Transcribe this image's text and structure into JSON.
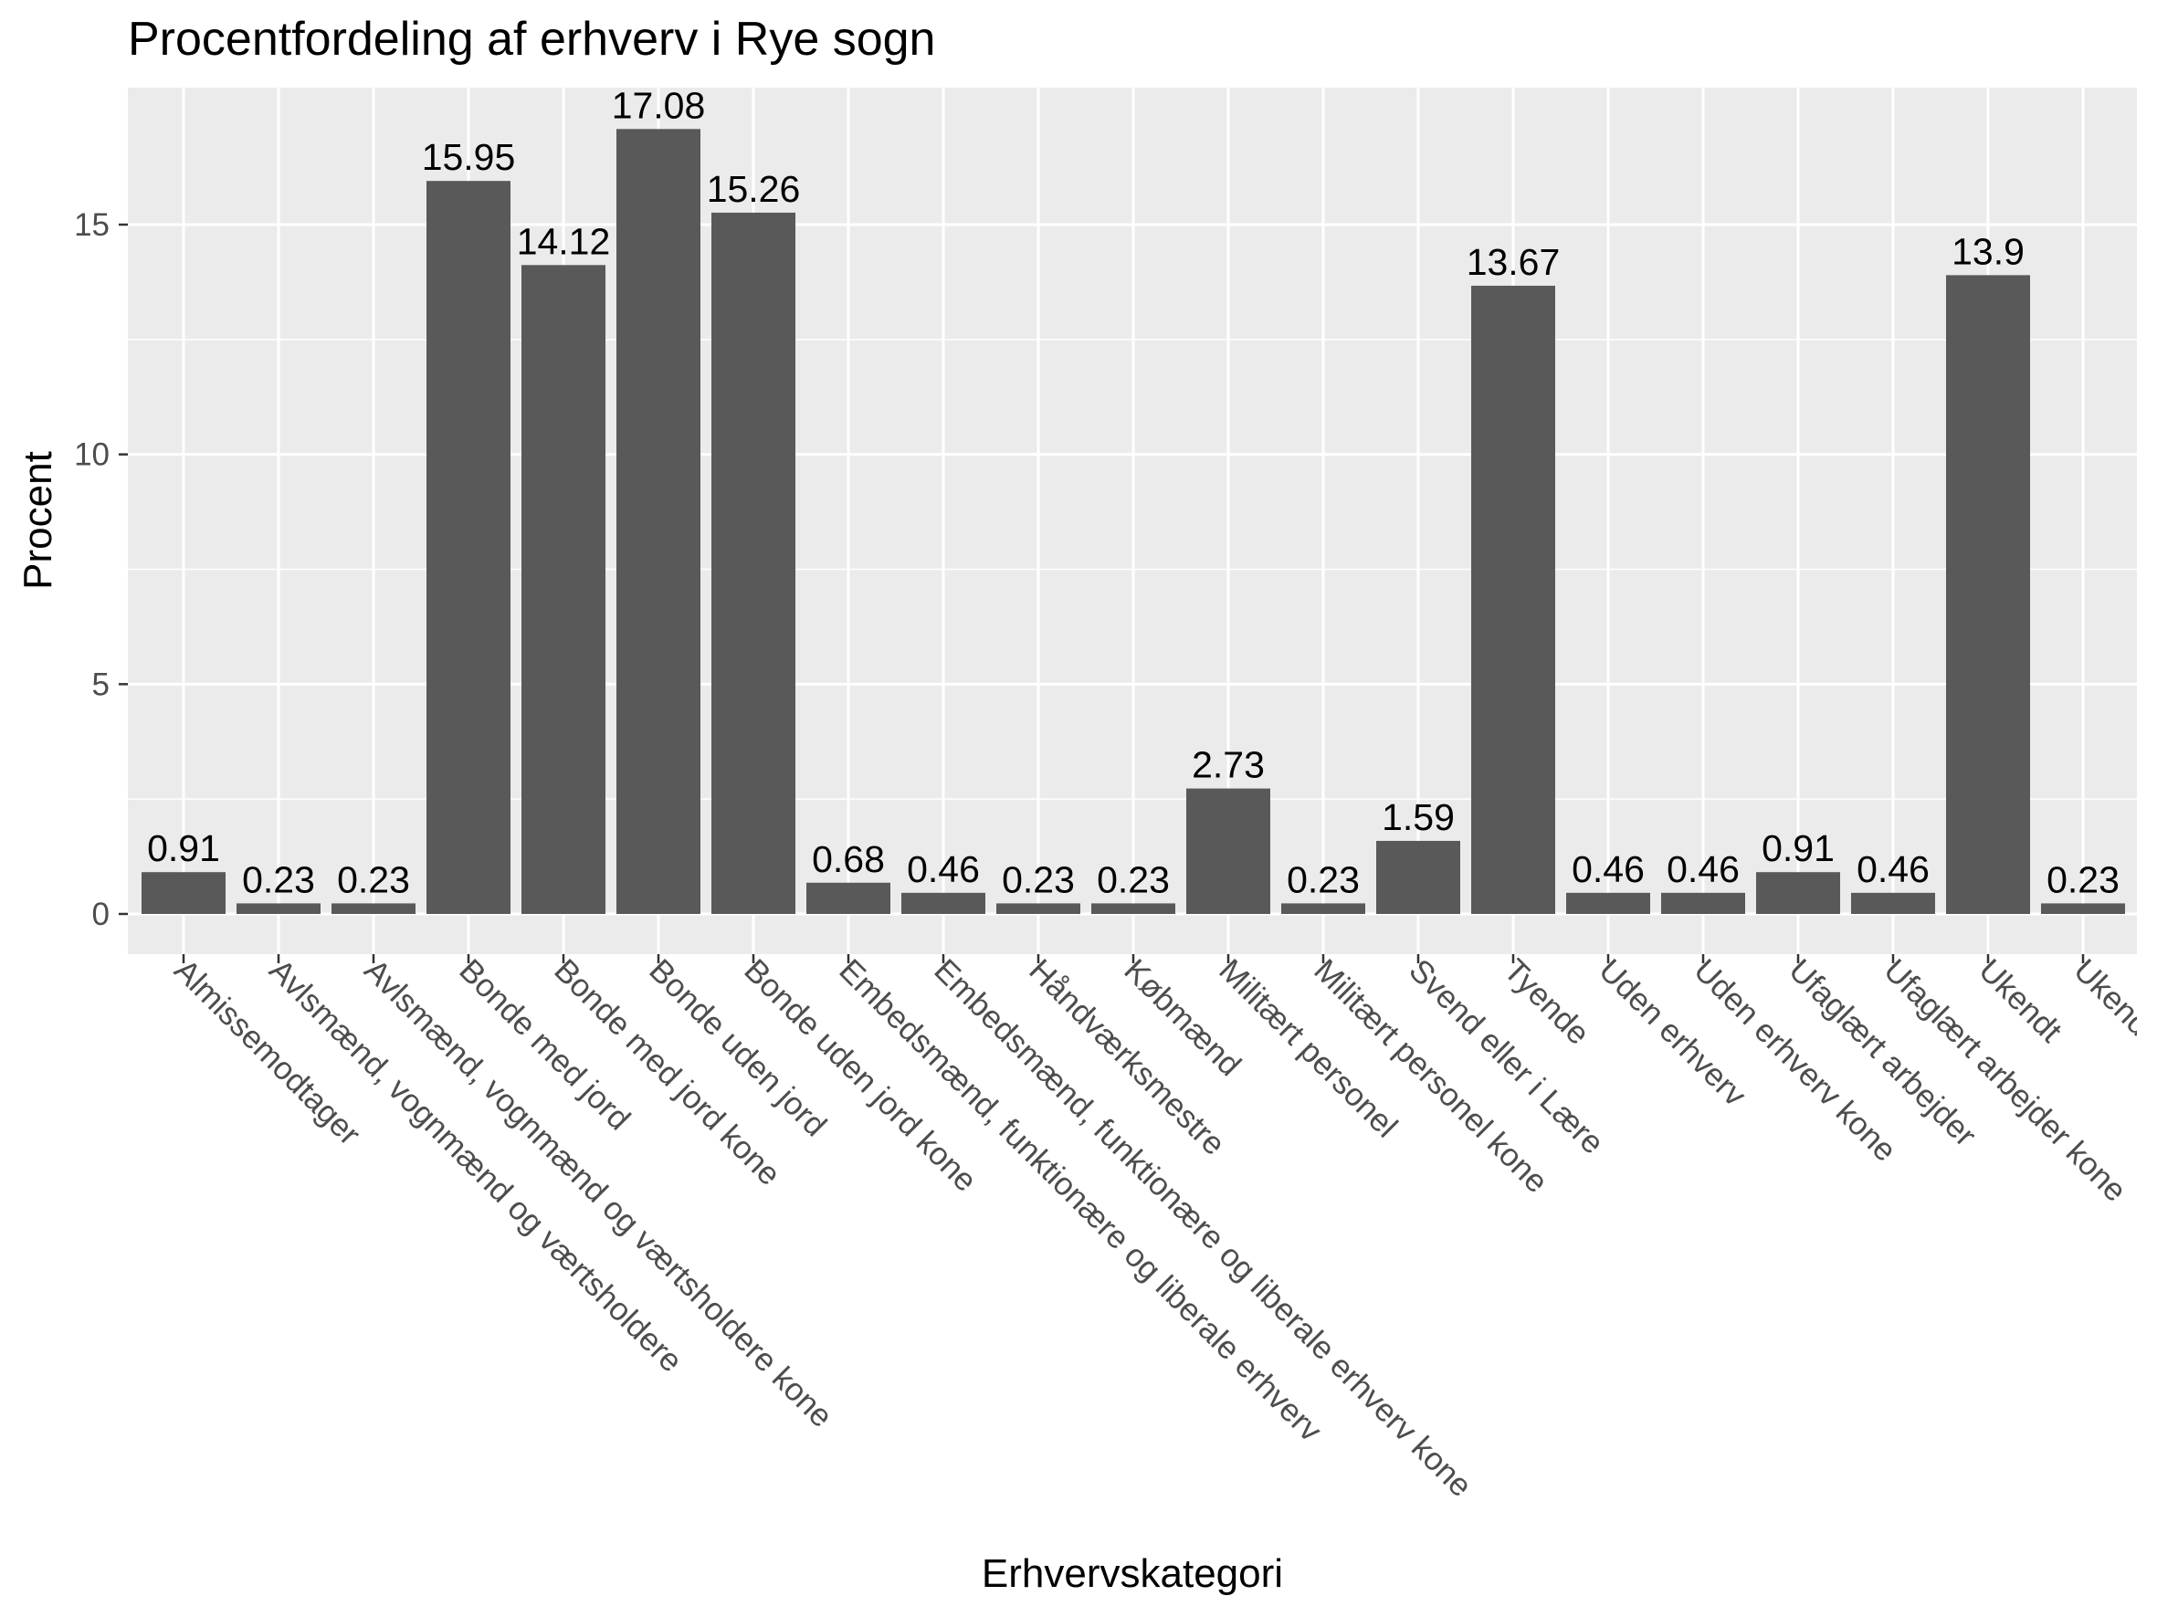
{
  "chart_data": {
    "type": "bar",
    "title": "Procentfordeling af erhverv i Rye sogn",
    "xlabel": "Erhvervskategori",
    "ylabel": "Procent",
    "ylim": [
      0,
      17.5
    ],
    "yticks": [
      0,
      5,
      10,
      15
    ],
    "grid": true,
    "legend": "none",
    "colors": {
      "panel": "#ebebeb",
      "grid": "#ffffff",
      "bar": "#595959",
      "text": "#000000",
      "axis_text": "#4d4d4d"
    },
    "categories": [
      "Almissemodtager",
      "Avlsmænd, vognmænd og værtsholdere",
      "Avlsmænd, vognmænd og værtsholdere kone",
      "Bonde med jord",
      "Bonde med jord kone",
      "Bonde uden jord",
      "Bonde uden jord kone",
      "Embedsmænd, funktionære og liberale erhverv",
      "Embedsmænd, funktionære og liberale erhverv kone",
      "Håndværksmestre",
      "Købmænd",
      "Militært personel",
      "Militært personel kone",
      "Svend eller i Lære",
      "Tyende",
      "Uden erhverv",
      "Uden erhverv kone",
      "Ufaglært arbejder",
      "Ufaglært arbejder kone",
      "Ukendt",
      "Ukendt kone"
    ],
    "values": [
      0.91,
      0.23,
      0.23,
      15.95,
      14.12,
      17.08,
      15.26,
      0.68,
      0.46,
      0.23,
      0.23,
      2.73,
      0.23,
      1.59,
      13.67,
      0.46,
      0.46,
      0.91,
      0.46,
      13.9,
      0.23
    ],
    "data_labels": [
      "0.91",
      "0.23",
      "0.23",
      "15.95",
      "14.12",
      "17.08",
      "15.26",
      "0.68",
      "0.46",
      "0.23",
      "0.23",
      "2.73",
      "0.23",
      "1.59",
      "13.67",
      "0.46",
      "0.46",
      "0.91",
      "0.46",
      "13.9",
      "0.23"
    ]
  }
}
